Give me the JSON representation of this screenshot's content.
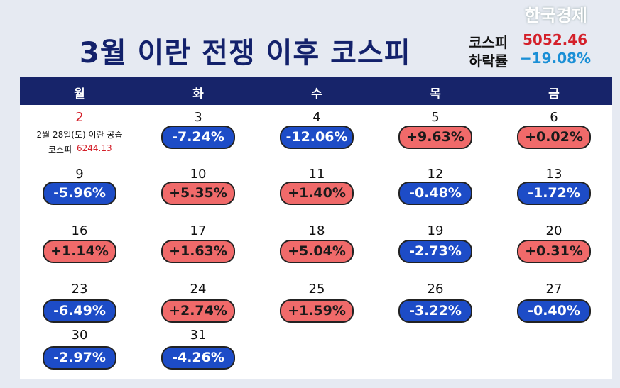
{
  "watermark": "한국경제",
  "header": {
    "title": "3월 이란 전쟁 이후 코스피",
    "index_label": "코스피",
    "index_value": "5052.46",
    "drop_label": "하락률",
    "drop_value": "−19.08%"
  },
  "weekdays": [
    "월",
    "화",
    "수",
    "목",
    "금"
  ],
  "weeks": [
    [
      {
        "day": "2",
        "note": "2월 28일(토) 이란 공습",
        "note_label": "코스피",
        "note_value": "6244.13"
      },
      {
        "day": "3",
        "change": "-7.24%"
      },
      {
        "day": "4",
        "change": "-12.06%"
      },
      {
        "day": "5",
        "change": "+9.63%"
      },
      {
        "day": "6",
        "change": "+0.02%"
      }
    ],
    [
      {
        "day": "9",
        "change": "-5.96%"
      },
      {
        "day": "10",
        "change": "+5.35%"
      },
      {
        "day": "11",
        "change": "+1.40%"
      },
      {
        "day": "12",
        "change": "-0.48%"
      },
      {
        "day": "13",
        "change": "-1.72%"
      }
    ],
    [
      {
        "day": "16",
        "change": "+1.14%"
      },
      {
        "day": "17",
        "change": "+1.63%"
      },
      {
        "day": "18",
        "change": "+5.04%"
      },
      {
        "day": "19",
        "change": "-2.73%"
      },
      {
        "day": "20",
        "change": "+0.31%"
      }
    ],
    [
      {
        "day": "23",
        "change": "-6.49%"
      },
      {
        "day": "24",
        "change": "+2.74%"
      },
      {
        "day": "25",
        "change": "+1.59%"
      },
      {
        "day": "26",
        "change": "-3.22%"
      },
      {
        "day": "27",
        "change": "-0.40%"
      }
    ],
    [
      {
        "day": "30",
        "change": "-2.97%"
      },
      {
        "day": "31",
        "change": "-4.26%"
      }
    ]
  ]
}
